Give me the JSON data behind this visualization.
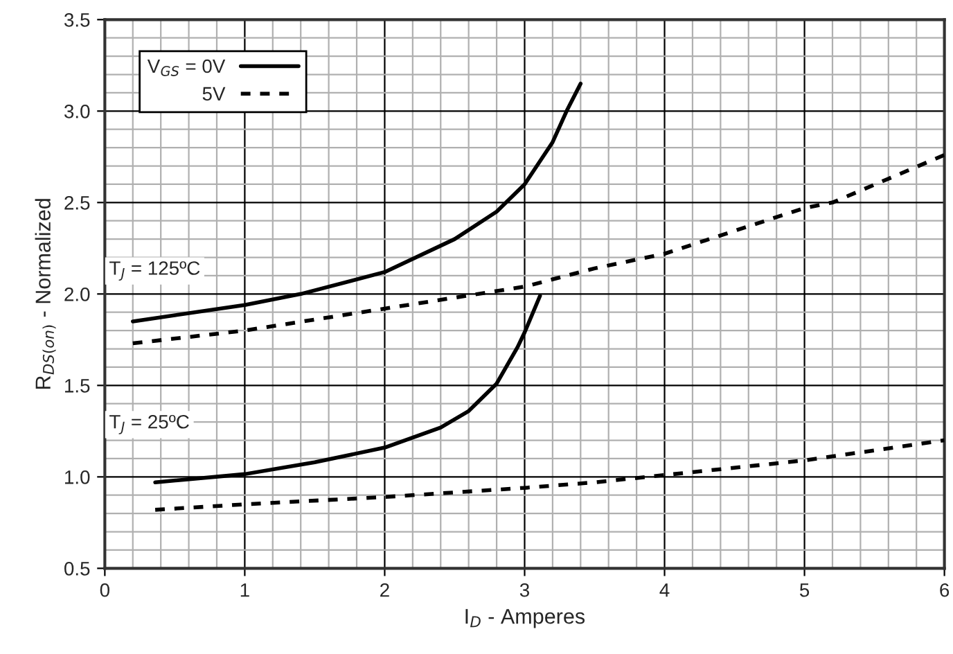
{
  "chart_data": {
    "type": "line",
    "xlabel": "I$_{D}$ - Amperes",
    "ylabel": "R$_{DS(on)}$ - Normalized",
    "xlim": [
      0,
      6
    ],
    "ylim": [
      0.5,
      3.5
    ],
    "xticks": [
      0,
      1,
      2,
      3,
      4,
      5,
      6
    ],
    "yticks": [
      {
        "value": 0.5,
        "label": "0.5"
      },
      {
        "value": 1.0,
        "label": "1.0"
      },
      {
        "value": 1.5,
        "label": "1.5"
      },
      {
        "value": 2.0,
        "label": "2.0"
      },
      {
        "value": 2.5,
        "label": "2.5"
      },
      {
        "value": 3.0,
        "label": "3.0"
      },
      {
        "value": 3.5,
        "label": "3.5"
      }
    ],
    "grid": true,
    "legend": "top left",
    "annotations": [
      "T$_{J}$ = 125ºC",
      "T$_{J}$ = 25ºC"
    ],
    "series": [
      {
        "name": "V$_{GS}$ = 0V",
        "color": "#000000",
        "line_style": "solid",
        "x": [
          0.2,
          1.0,
          1.4,
          2.0,
          2.5,
          2.8,
          3.0,
          3.2,
          3.3,
          3.4
        ],
        "values": [
          1.85,
          1.94,
          2.0,
          2.12,
          2.3,
          2.45,
          2.6,
          2.83,
          3.0,
          3.15
        ]
      },
      {
        "name": "5V",
        "color": "#000000",
        "line_style": "dashed",
        "x": [
          0.2,
          1.0,
          2.0,
          3.0,
          3.5,
          4.0,
          5.0,
          5.2,
          6.0
        ],
        "values": [
          1.73,
          1.8,
          1.92,
          2.04,
          2.14,
          2.22,
          2.47,
          2.5,
          2.76
        ]
      },
      {
        "color": "#000000",
        "line_style": "solid",
        "x": [
          0.36,
          1.0,
          1.5,
          2.0,
          2.4,
          2.6,
          2.8,
          2.95,
          3.0,
          3.11
        ],
        "values": [
          0.97,
          1.015,
          1.08,
          1.16,
          1.27,
          1.36,
          1.51,
          1.71,
          1.79,
          1.99
        ]
      },
      {
        "color": "#000000",
        "line_style": "dashed",
        "x": [
          0.36,
          1.0,
          2.0,
          3.0,
          3.5,
          4.0,
          5.0,
          6.0
        ],
        "values": [
          0.82,
          0.85,
          0.89,
          0.94,
          0.97,
          1.01,
          1.09,
          1.2
        ]
      }
    ]
  }
}
